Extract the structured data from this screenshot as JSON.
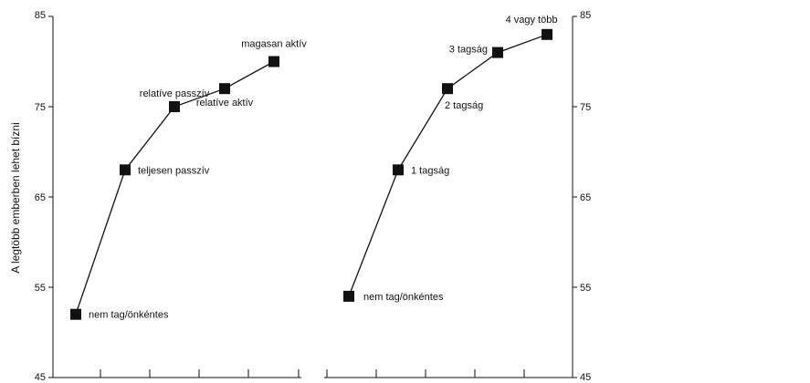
{
  "chart_data": [
    {
      "type": "line",
      "ylabel": "A legtöbb emberben lehet bízni",
      "ylim": [
        45,
        85
      ],
      "yticks": [
        45,
        55,
        65,
        75,
        85
      ],
      "points": [
        {
          "label": "nem tag/önkéntes",
          "y": 52
        },
        {
          "label": "teljesen passzív",
          "y": 68
        },
        {
          "label": "relatíve passzív",
          "y": 75
        },
        {
          "label": "relatíve aktív",
          "y": 77
        },
        {
          "label": "magasan aktív",
          "y": 80
        }
      ]
    },
    {
      "type": "line",
      "ylim": [
        45,
        85
      ],
      "yticks": [
        45,
        55,
        65,
        75,
        85
      ],
      "points": [
        {
          "label": "nem tag/önkéntes",
          "y": 54
        },
        {
          "label": "1 tagság",
          "y": 68
        },
        {
          "label": "2 tagság",
          "y": 77
        },
        {
          "label": "3 tagság",
          "y": 81
        },
        {
          "label": "4 vagy több",
          "y": 83
        }
      ]
    }
  ]
}
